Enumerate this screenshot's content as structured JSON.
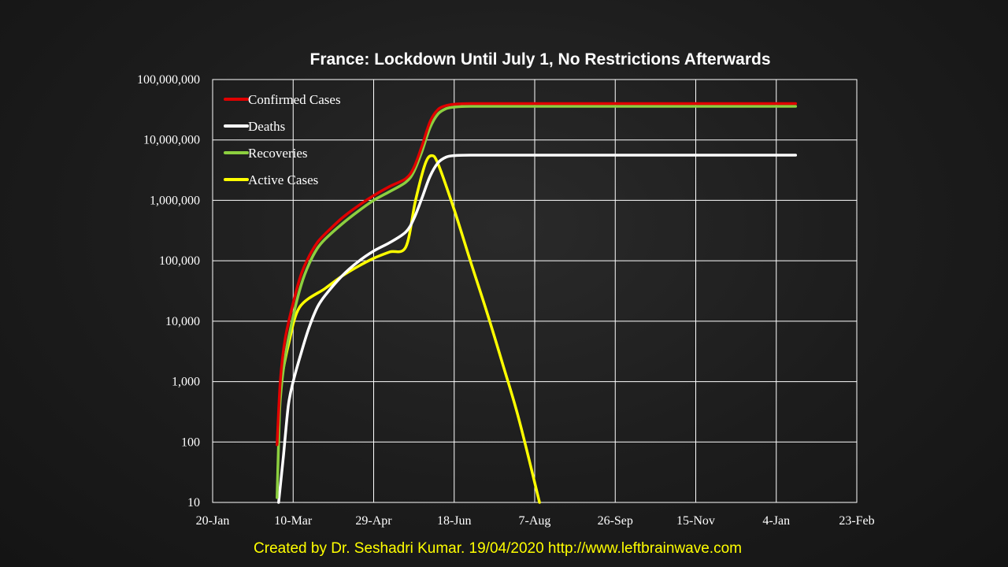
{
  "chart_data": {
    "type": "line",
    "title": "France: Lockdown Until July 1, No Restrictions Afterwards",
    "xlabel": "",
    "ylabel": "",
    "y_scale": "log",
    "ylim": [
      10,
      100000000
    ],
    "xlim": [
      "20-Jan",
      "23-Feb"
    ],
    "y_ticks": [
      {
        "value": 10,
        "label": "10"
      },
      {
        "value": 100,
        "label": "100"
      },
      {
        "value": 1000,
        "label": "1,000"
      },
      {
        "value": 10000,
        "label": "10,000"
      },
      {
        "value": 100000,
        "label": "100,000"
      },
      {
        "value": 1000000,
        "label": "1,000,000"
      },
      {
        "value": 10000000,
        "label": "10,000,000"
      },
      {
        "value": 100000000,
        "label": "100,000,000"
      }
    ],
    "x_ticks": [
      {
        "day": 0,
        "label": "20-Jan"
      },
      {
        "day": 50,
        "label": "10-Mar"
      },
      {
        "day": 100,
        "label": "29-Apr"
      },
      {
        "day": 150,
        "label": "18-Jun"
      },
      {
        "day": 200,
        "label": "7-Aug"
      },
      {
        "day": 250,
        "label": "26-Sep"
      },
      {
        "day": 300,
        "label": "15-Nov"
      },
      {
        "day": 350,
        "label": "4-Jan"
      },
      {
        "day": 400,
        "label": "23-Feb"
      }
    ],
    "grid": true,
    "legend_position": "top-left",
    "series": [
      {
        "name": "Confirmed Cases",
        "color": "#e00000",
        "points": [
          [
            40,
            90
          ],
          [
            42,
            1000
          ],
          [
            45,
            5000
          ],
          [
            50,
            20000
          ],
          [
            55,
            60000
          ],
          [
            60,
            120000
          ],
          [
            65,
            200000
          ],
          [
            70,
            280000
          ],
          [
            80,
            500000
          ],
          [
            90,
            800000
          ],
          [
            100,
            1200000
          ],
          [
            110,
            1700000
          ],
          [
            120,
            2300000
          ],
          [
            125,
            3500000
          ],
          [
            130,
            8000000
          ],
          [
            135,
            20000000
          ],
          [
            140,
            32000000
          ],
          [
            145,
            37000000
          ],
          [
            150,
            39000000
          ],
          [
            160,
            40000000
          ],
          [
            200,
            40000000
          ],
          [
            250,
            40000000
          ],
          [
            300,
            40000000
          ],
          [
            362,
            40000000
          ]
        ]
      },
      {
        "name": "Deaths",
        "color": "#ffffff",
        "points": [
          [
            41,
            10
          ],
          [
            44,
            60
          ],
          [
            47,
            400
          ],
          [
            50,
            1000
          ],
          [
            55,
            3000
          ],
          [
            60,
            8000
          ],
          [
            65,
            17000
          ],
          [
            70,
            27000
          ],
          [
            80,
            55000
          ],
          [
            90,
            95000
          ],
          [
            100,
            145000
          ],
          [
            110,
            200000
          ],
          [
            120,
            300000
          ],
          [
            125,
            500000
          ],
          [
            130,
            1100000
          ],
          [
            135,
            2500000
          ],
          [
            140,
            4200000
          ],
          [
            145,
            5200000
          ],
          [
            150,
            5500000
          ],
          [
            160,
            5600000
          ],
          [
            200,
            5600000
          ],
          [
            250,
            5600000
          ],
          [
            300,
            5600000
          ],
          [
            362,
            5600000
          ]
        ]
      },
      {
        "name": "Recoveries",
        "color": "#8ccf3f",
        "points": [
          [
            40,
            12
          ],
          [
            41,
            100
          ],
          [
            42,
            500
          ],
          [
            45,
            2500
          ],
          [
            50,
            12000
          ],
          [
            55,
            40000
          ],
          [
            60,
            90000
          ],
          [
            65,
            160000
          ],
          [
            70,
            230000
          ],
          [
            80,
            400000
          ],
          [
            90,
            650000
          ],
          [
            100,
            1000000
          ],
          [
            110,
            1400000
          ],
          [
            120,
            2000000
          ],
          [
            125,
            3000000
          ],
          [
            130,
            6500000
          ],
          [
            135,
            16000000
          ],
          [
            140,
            27000000
          ],
          [
            145,
            33000000
          ],
          [
            150,
            35000000
          ],
          [
            160,
            36000000
          ],
          [
            200,
            36000000
          ],
          [
            250,
            36000000
          ],
          [
            300,
            36000000
          ],
          [
            362,
            36000000
          ]
        ]
      },
      {
        "name": "Active Cases",
        "color": "#ffff00",
        "points": [
          [
            43,
            1200
          ],
          [
            47,
            4000
          ],
          [
            54,
            17000
          ],
          [
            70,
            35000
          ],
          [
            80,
            55000
          ],
          [
            90,
            80000
          ],
          [
            100,
            110000
          ],
          [
            110,
            140000
          ],
          [
            120,
            170000
          ],
          [
            126,
            1000000
          ],
          [
            132,
            4000000
          ],
          [
            136,
            5500000
          ],
          [
            140,
            4000000
          ],
          [
            150,
            700000
          ],
          [
            160,
            100000
          ],
          [
            170,
            15000
          ],
          [
            180,
            2000
          ],
          [
            190,
            250
          ],
          [
            203,
            10
          ]
        ]
      }
    ]
  },
  "credit": "Created by Dr. Seshadri Kumar. 19/04/2020 http://www.leftbrainwave.com"
}
